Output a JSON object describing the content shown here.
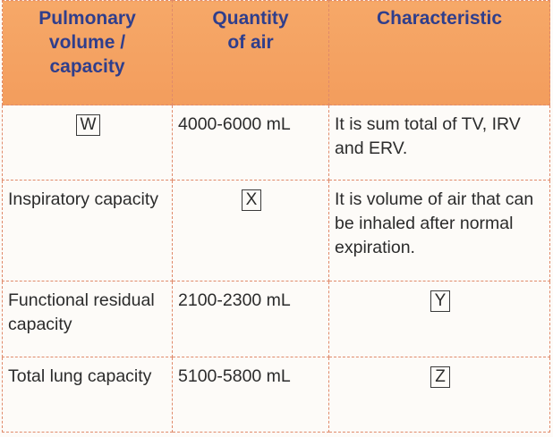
{
  "table": {
    "headers": [
      "Pulmonary volume / capacity",
      "Quantity of air",
      "Characteristic"
    ],
    "header_lines": [
      [
        "Pulmonary",
        "volume /",
        "capacity"
      ],
      [
        "Quantity",
        "of air"
      ],
      [
        "Characteristic"
      ]
    ],
    "rows": [
      {
        "volume": "",
        "volume_box": "W",
        "quantity": "4000-6000 mL",
        "quantity_box": "",
        "characteristic": "It is sum total of TV, IRV and ERV.",
        "characteristic_box": ""
      },
      {
        "volume": "Inspiratory capacity",
        "volume_box": "",
        "quantity": "",
        "quantity_box": "X",
        "characteristic": "It is volume of air that can be inhaled after normal expiration.",
        "characteristic_box": ""
      },
      {
        "volume": "Functional residual capacity",
        "volume_box": "",
        "quantity": "2100-2300 mL",
        "quantity_box": "",
        "characteristic": "",
        "characteristic_box": "Y"
      },
      {
        "volume": "Total lung capacity",
        "volume_box": "",
        "quantity": "5100-5800 mL",
        "quantity_box": "",
        "characteristic": "",
        "characteristic_box": "Z"
      }
    ]
  },
  "colors": {
    "header_bg": "#f4a262",
    "header_text": "#2f3e8c",
    "border": "#e08a6a",
    "body_text": "#2b2b2b"
  }
}
